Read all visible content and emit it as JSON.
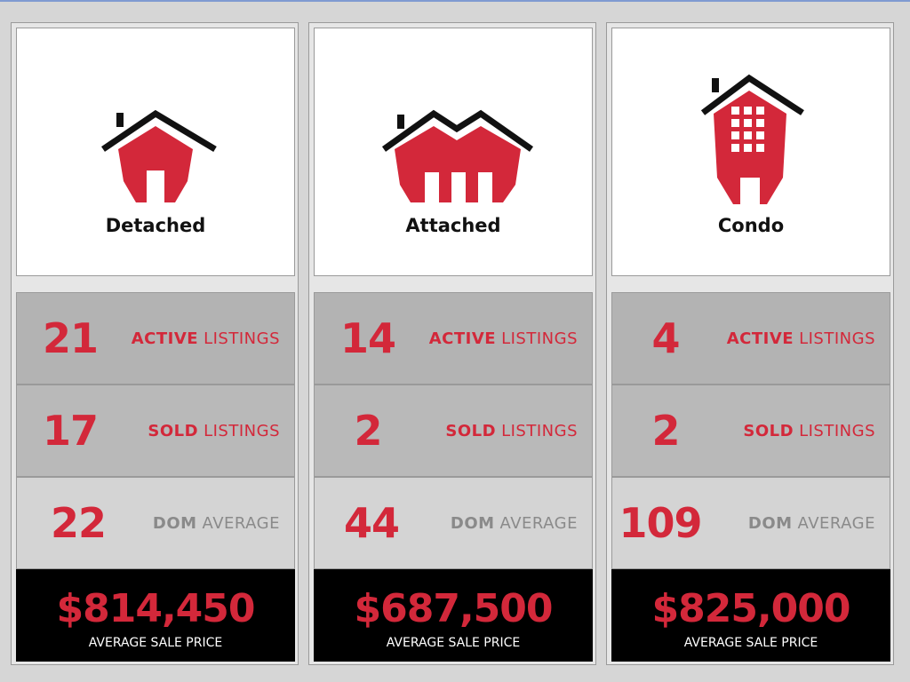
{
  "colors": {
    "accent": "#d3283a",
    "dark": "#000000",
    "grey_text": "#8a8a8a"
  },
  "columns": [
    {
      "type": "Detached",
      "icon": "detached-house-icon",
      "active": {
        "value": "21",
        "keyword": "ACTIVE",
        "rest": "LISTINGS"
      },
      "sold": {
        "value": "17",
        "keyword": "SOLD",
        "rest": "LISTINGS"
      },
      "dom": {
        "value": "22",
        "keyword": "DOM",
        "rest": "AVERAGE"
      },
      "price": {
        "value": "$814,450",
        "label": "AVERAGE SALE PRICE"
      }
    },
    {
      "type": "Attached",
      "icon": "attached-house-icon",
      "active": {
        "value": "14",
        "keyword": "ACTIVE",
        "rest": "LISTINGS"
      },
      "sold": {
        "value": "2",
        "keyword": "SOLD",
        "rest": "LISTINGS"
      },
      "dom": {
        "value": "44",
        "keyword": "DOM",
        "rest": "AVERAGE"
      },
      "price": {
        "value": "$687,500",
        "label": "AVERAGE SALE PRICE"
      }
    },
    {
      "type": "Condo",
      "icon": "condo-building-icon",
      "active": {
        "value": "4",
        "keyword": "ACTIVE",
        "rest": "LISTINGS"
      },
      "sold": {
        "value": "2",
        "keyword": "SOLD",
        "rest": "LISTINGS"
      },
      "dom": {
        "value": "109",
        "keyword": "DOM",
        "rest": "AVERAGE"
      },
      "price": {
        "value": "$825,000",
        "label": "AVERAGE SALE PRICE"
      }
    }
  ]
}
